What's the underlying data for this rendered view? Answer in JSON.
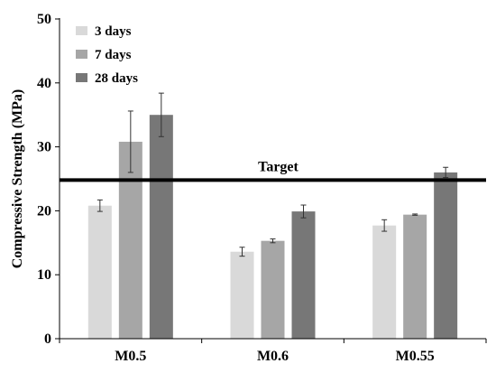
{
  "chart_data": {
    "type": "bar",
    "ylabel": "Compressive Strength (MPa)",
    "xlabel": "",
    "ylim": [
      0,
      50
    ],
    "yticks": [
      0,
      10,
      20,
      30,
      40,
      50
    ],
    "categories": [
      "M0.5",
      "M0.6",
      "M0.55"
    ],
    "series": [
      {
        "name": "3 days",
        "color": "#d9d9d9",
        "values": [
          20.8,
          13.6,
          17.7
        ],
        "errors": [
          0.9,
          0.7,
          0.9
        ]
      },
      {
        "name": "7 days",
        "color": "#a6a6a6",
        "values": [
          30.8,
          15.3,
          19.4
        ],
        "errors": [
          4.8,
          0.3,
          0.1
        ]
      },
      {
        "name": "28 days",
        "color": "#777777",
        "values": [
          35.0,
          19.9,
          26.0
        ],
        "errors": [
          3.4,
          1.0,
          0.8
        ]
      }
    ],
    "target": {
      "label": "Target",
      "value": 24.8
    },
    "legend_position": "top-left",
    "grid": false
  }
}
